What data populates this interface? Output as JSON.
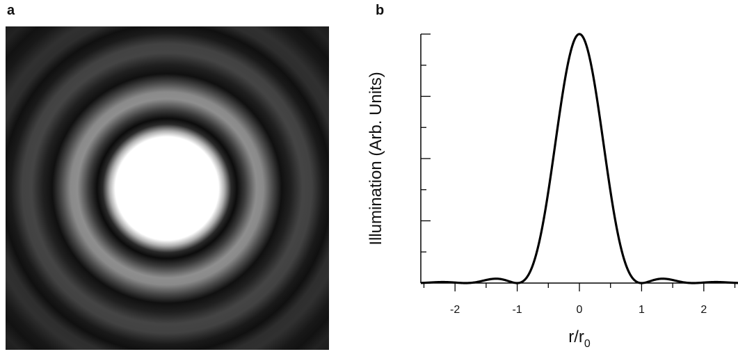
{
  "panels": {
    "a": {
      "label": "a"
    },
    "b": {
      "label": "b"
    }
  },
  "image_panel": {
    "description_type": "airy-disk-intensity",
    "background_color": "#1c1c1c",
    "center_color": "#ffffff",
    "ring_color": "#8a8a8a"
  },
  "chart_data": {
    "type": "line",
    "title": "",
    "xlabel": "r/r",
    "xlabel_subscript": "0",
    "ylabel": "Illumination (Arb. Units)",
    "xlim": [
      -2.55,
      2.55
    ],
    "ylim": [
      0,
      1.0
    ],
    "x_ticks": [
      -2,
      -1,
      0,
      1,
      2
    ],
    "x_tick_labels": [
      "-2",
      "-1",
      "0",
      "1",
      "2"
    ],
    "x_minor_step": 0.5,
    "y_major_ticks": [
      0,
      0.25,
      0.5,
      0.75,
      1.0
    ],
    "y_minor_step": 0.125,
    "grid": false,
    "series": [
      {
        "function": "airy-pattern",
        "x": [
          -2.5,
          -2.2,
          -2.0,
          -1.8,
          -1.6,
          -1.4,
          -1.3,
          -1.2,
          -1.1,
          -1.0,
          -0.9,
          -0.8,
          -0.6,
          -0.4,
          -0.2,
          0,
          0.2,
          0.4,
          0.6,
          0.8,
          0.9,
          1.0,
          1.1,
          1.2,
          1.3,
          1.4,
          1.6,
          1.8,
          2.0,
          2.2,
          2.5
        ],
        "y": [
          0.003,
          0.004,
          0.001,
          0.003,
          0.012,
          0.017,
          0.017,
          0.012,
          0.005,
          0.0,
          0.01,
          0.05,
          0.25,
          0.55,
          0.86,
          1.0,
          0.86,
          0.55,
          0.25,
          0.05,
          0.01,
          0.0,
          0.005,
          0.012,
          0.017,
          0.017,
          0.012,
          0.003,
          0.001,
          0.004,
          0.003
        ],
        "color": "#000000"
      }
    ]
  }
}
